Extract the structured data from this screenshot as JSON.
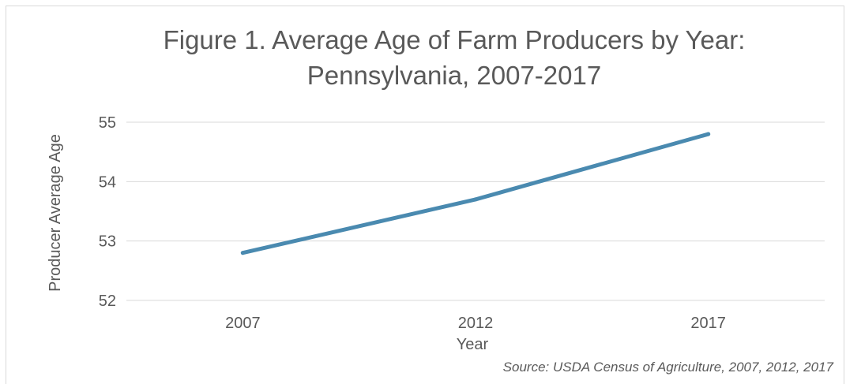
{
  "chart_data": {
    "type": "line",
    "title_lines": [
      "Figure 1. Average Age of Farm Producers by Year:",
      "Pennsylvania, 2007-2017"
    ],
    "categories": [
      "2007",
      "2012",
      "2017"
    ],
    "series": [
      {
        "values": [
          52.8,
          53.7,
          54.8
        ],
        "color": "#4a8ab0"
      }
    ],
    "xlabel": "Year",
    "ylabel": "Producer Average Age",
    "ylim": [
      52,
      55
    ],
    "yticks": [
      "52",
      "53",
      "54",
      "55"
    ],
    "grid": true,
    "gridline_color": "#d9d9d9",
    "text_color": "#595959",
    "source": "Source: USDA Census of Agriculture, 2007, 2012, 2017"
  }
}
